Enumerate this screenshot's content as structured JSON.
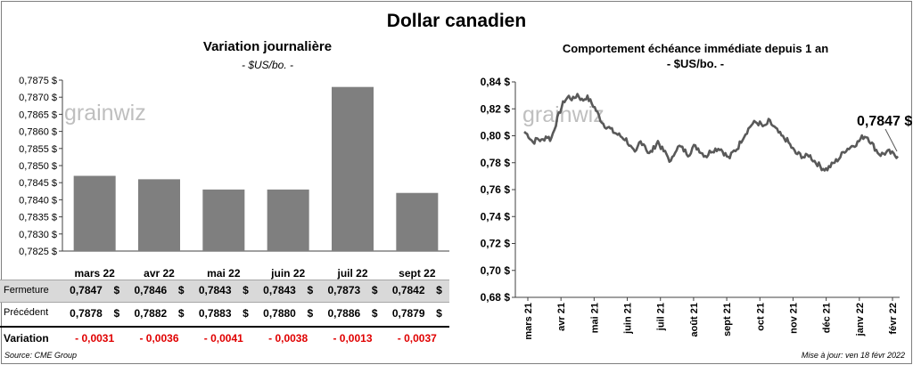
{
  "title": "Dollar canadien",
  "left_chart": {
    "title": "Variation  journalière",
    "subtitle": "- $US/bo. -"
  },
  "right_chart": {
    "title": "Comportement échéance immédiate depuis 1 an",
    "subtitle": "- $US/bo. -",
    "last_value_label": "0,7847 $"
  },
  "watermark": "grainwiz",
  "chart_data": [
    {
      "type": "bar",
      "title": "Variation  journalière",
      "subtitle": "- $US/bo. -",
      "categories": [
        "mars 22",
        "avr 22",
        "mai 22",
        "juin 22",
        "juil 22",
        "sept 22"
      ],
      "values": [
        0.7847,
        0.7846,
        0.7843,
        0.7843,
        0.7873,
        0.7842
      ],
      "ylim": [
        0.7825,
        0.7875
      ],
      "yticks": [
        "0,7825 $",
        "0,7830 $",
        "0,7835 $",
        "0,7840 $",
        "0,7845 $",
        "0,7850 $",
        "0,7855 $",
        "0,7860 $",
        "0,7865 $",
        "0,7870 $",
        "0,7875 $"
      ],
      "color": "#7f7f7f"
    },
    {
      "type": "line",
      "title": "Comportement échéance immédiate depuis 1 an",
      "subtitle": "- $US/bo. -",
      "x": [
        "mars 21",
        "avr 21",
        "mai 21",
        "juin 21",
        "juil 21",
        "août 21",
        "sept 21",
        "oct 21",
        "nov 21",
        "déc 21",
        "janv 22",
        "févr 22"
      ],
      "anchors": [
        0.803,
        0.8,
        0.795,
        0.798,
        0.796,
        0.8,
        0.797,
        0.808,
        0.818,
        0.826,
        0.829,
        0.827,
        0.831,
        0.826,
        0.829,
        0.825,
        0.82,
        0.813,
        0.808,
        0.806,
        0.803,
        0.801,
        0.799,
        0.797,
        0.791,
        0.786,
        0.796,
        0.794,
        0.786,
        0.79,
        0.796,
        0.79,
        0.786,
        0.78,
        0.79,
        0.792,
        0.789,
        0.786,
        0.792,
        0.791,
        0.787,
        0.785,
        0.789,
        0.79,
        0.791,
        0.787,
        0.783,
        0.788,
        0.791,
        0.798,
        0.803,
        0.808,
        0.81,
        0.809,
        0.806,
        0.811,
        0.807,
        0.803,
        0.799,
        0.797,
        0.792,
        0.787,
        0.786,
        0.784,
        0.786,
        0.782,
        0.779,
        0.776,
        0.775,
        0.778,
        0.781,
        0.784,
        0.789,
        0.791,
        0.793,
        0.795,
        0.799,
        0.8,
        0.795,
        0.79,
        0.786,
        0.787,
        0.788,
        0.786,
        0.7847
      ],
      "ylim": [
        0.68,
        0.84
      ],
      "yticks": [
        "0,68 $",
        "0,70 $",
        "0,72 $",
        "0,74 $",
        "0,76 $",
        "0,78 $",
        "0,80 $",
        "0,82 $",
        "0,84 $"
      ],
      "color": "#595959"
    }
  ],
  "table": {
    "months": [
      "mars 22",
      "avr 22",
      "mai 22",
      "juin 22",
      "juil 22",
      "sept 22"
    ],
    "rows": [
      {
        "label": "Fermeture",
        "values": [
          "0,7847",
          "0,7846",
          "0,7843",
          "0,7843",
          "0,7873",
          "0,7842"
        ]
      },
      {
        "label": "Précédent",
        "values": [
          "0,7878",
          "0,7882",
          "0,7883",
          "0,7880",
          "0,7886",
          "0,7879"
        ]
      }
    ],
    "currency": "$",
    "variation_label": "Variation",
    "variation": [
      "- 0,0031",
      "- 0,0036",
      "- 0,0041",
      "- 0,0038",
      "- 0,0013",
      "- 0,0037"
    ]
  },
  "footer": {
    "source": "Source: CME Group",
    "updated": "Mise à jour: ven 18 févr 2022"
  }
}
